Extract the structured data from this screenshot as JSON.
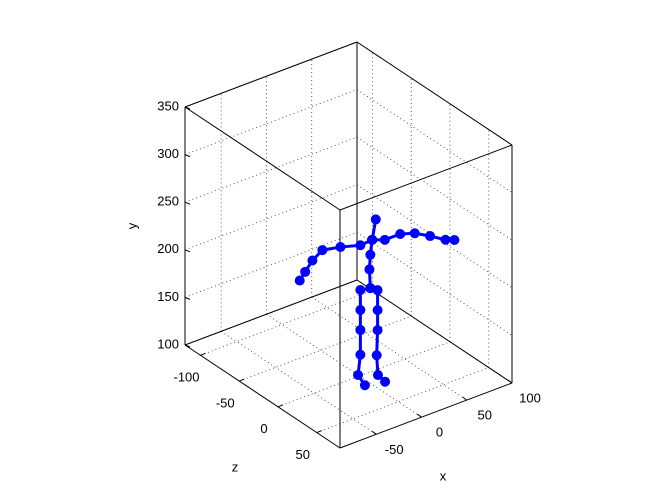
{
  "chart_data": {
    "type": "line3d",
    "xlabel": "x",
    "ylabel": "y",
    "zlabel": "z",
    "xlim": [
      -90,
      100
    ],
    "ylim": [
      100,
      350
    ],
    "zlim": [
      -120,
      80
    ],
    "xticks": [
      -50,
      0,
      50,
      100
    ],
    "yticks": [
      100,
      150,
      200,
      250,
      300,
      350
    ],
    "zticks": [
      -100,
      -50,
      0,
      50
    ],
    "grid": true,
    "series": [
      {
        "color": "#0000ff",
        "x": [
          18,
          14,
          12,
          11,
          12
        ],
        "y": [
          258,
          238,
          223,
          208,
          188
        ],
        "z": [
          0,
          0,
          0,
          0,
          0
        ]
      },
      {
        "color": "#0000ff",
        "x": [
          14,
          1,
          -21,
          -41,
          -52,
          -60,
          -66
        ],
        "y": [
          238,
          237,
          243,
          247,
          240,
          231,
          224
        ],
        "z": [
          0,
          0,
          0,
          0,
          0,
          0,
          0
        ]
      },
      {
        "color": "#0000ff",
        "x": [
          14,
          28,
          45,
          61,
          78,
          95,
          98
        ],
        "y": [
          238,
          233,
          233,
          228,
          219,
          209,
          212
        ],
        "z": [
          0,
          0,
          0,
          0,
          0,
          0,
          8
        ]
      },
      {
        "color": "#0000ff",
        "x": [
          12,
          1,
          1,
          1,
          1,
          -5,
          -6
        ],
        "y": [
          188,
          190,
          169,
          148,
          122,
          105,
          100
        ],
        "z": [
          0,
          0,
          0,
          0,
          0,
          4,
          14
        ]
      },
      {
        "color": "#0000ff",
        "x": [
          12,
          20,
          20,
          20,
          19,
          11,
          12
        ],
        "y": [
          188,
          183,
          162,
          141,
          115,
          103,
          100
        ],
        "z": [
          0,
          0,
          0,
          0,
          0,
          11,
          19
        ]
      }
    ]
  }
}
